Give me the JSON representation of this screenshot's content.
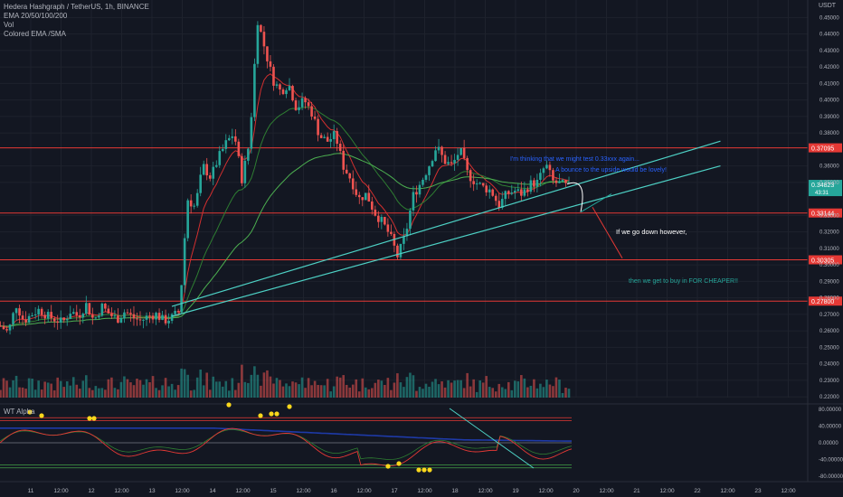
{
  "header": {
    "symbol_line": "Hedera Hashgraph / TetherUS, 1h, BINANCE",
    "indicators": [
      "EMA 20/50/100/200",
      "Vol",
      "Colored EMA /SMA"
    ],
    "unit": "USDT"
  },
  "oscillator": {
    "title": "WT Alpha",
    "ticks": [
      "80.00000",
      "40.00000",
      "0.00000",
      "-40.00000",
      "-80.00000"
    ]
  },
  "chart_data": {
    "type": "candlestick",
    "price_axis": {
      "ticks": [
        "0.45000",
        "0.44000",
        "0.43000",
        "0.42000",
        "0.41000",
        "0.40000",
        "0.39000",
        "0.38000",
        "0.36000",
        "0.35000",
        "0.33000",
        "0.32000",
        "0.31000",
        "0.30000",
        "0.29000",
        "0.28000",
        "0.27000",
        "0.26000",
        "0.25000",
        "0.24000",
        "0.23000",
        "0.22000"
      ],
      "range": [
        0.2195,
        0.4562
      ]
    },
    "time_axis": {
      "labels": [
        "11",
        "12:00",
        "12",
        "12:00",
        "13",
        "12:00",
        "14",
        "12:00",
        "15",
        "12:00",
        "16",
        "12:00",
        "17",
        "12:00",
        "18",
        "12:00",
        "19",
        "12:00",
        "20",
        "12:00",
        "21",
        "12:00",
        "22",
        "12:00",
        "23",
        "12:00"
      ]
    },
    "close_path": [
      0.263,
      0.259,
      0.276,
      0.266,
      0.27,
      0.273,
      0.269,
      0.267,
      0.265,
      0.272,
      0.269,
      0.276,
      0.266,
      0.275,
      0.27,
      0.267,
      0.272,
      0.268,
      0.266,
      0.269,
      0.27,
      0.266,
      0.268,
      0.272,
      0.34,
      0.335,
      0.36,
      0.353,
      0.365,
      0.374,
      0.38,
      0.352,
      0.375,
      0.449,
      0.43,
      0.412,
      0.405,
      0.41,
      0.395,
      0.4,
      0.392,
      0.378,
      0.375,
      0.379,
      0.36,
      0.352,
      0.34,
      0.343,
      0.332,
      0.326,
      0.318,
      0.305,
      0.318,
      0.342,
      0.35,
      0.36,
      0.372,
      0.363,
      0.36,
      0.37,
      0.355,
      0.35,
      0.347,
      0.345,
      0.336,
      0.343,
      0.345,
      0.343,
      0.349,
      0.35,
      0.361,
      0.35,
      0.349,
      0.347
    ],
    "horizontal_levels": [
      {
        "value": 0.37095,
        "label": "0.37095"
      },
      {
        "value": 0.33144,
        "label": "0.33144"
      },
      {
        "value": 0.30305,
        "label": "0.30305"
      },
      {
        "value": 0.278,
        "label": "0.27800"
      }
    ],
    "current_price": {
      "value": 0.34823,
      "label": "0.34823",
      "countdown": "43:31"
    },
    "channel_lines": [
      {
        "from": [
          14,
          0.277
        ],
        "to": [
          22.5,
          0.375
        ]
      },
      {
        "from": [
          14,
          0.271
        ],
        "to": [
          22.5,
          0.36
        ]
      }
    ],
    "annotations": [
      {
        "text": "I'm thinking that we might test 0.33xxx again...",
        "color": "#2962ff"
      },
      {
        "text": "A bounce to the upside would be lovely!",
        "color": "#2962ff"
      },
      {
        "text": "If we go down however,",
        "color": "#ffffff"
      },
      {
        "text": "then we get to buy in FOR CHEAPER!!",
        "color": "#26a69a"
      }
    ],
    "colors": {
      "up": "#26a69a",
      "down": "#ef5350",
      "level": "#e53935",
      "channel": "#4dd0c4"
    },
    "legend": "top-left",
    "grid": true
  }
}
